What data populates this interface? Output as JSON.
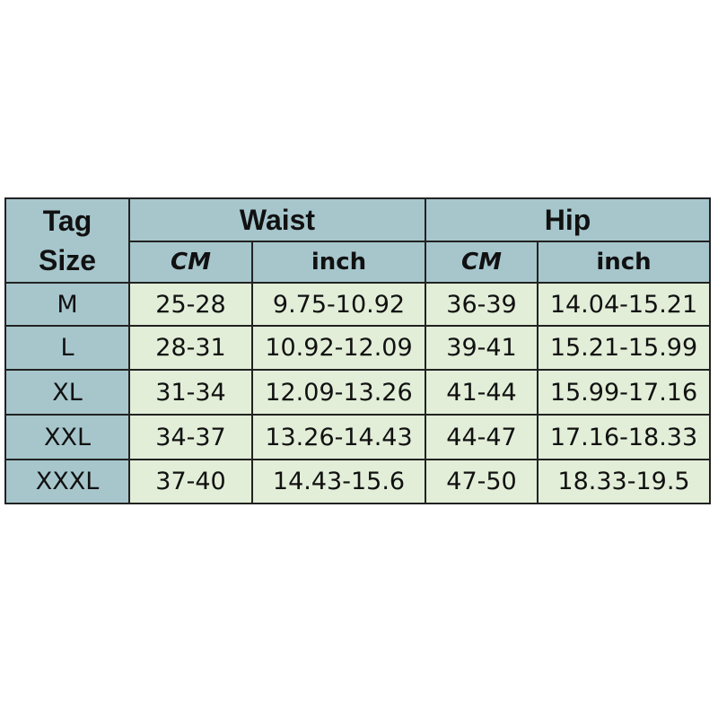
{
  "header": {
    "tag_size": [
      "Tag",
      "Size"
    ],
    "groups": [
      "Waist",
      "Hip"
    ],
    "units": [
      "CM",
      "inch",
      "CM",
      "inch"
    ]
  },
  "rows": [
    {
      "size": "M",
      "waist_cm": "25-28",
      "waist_inch": "9.75-10.92",
      "hip_cm": "36-39",
      "hip_inch": "14.04-15.21"
    },
    {
      "size": "L",
      "waist_cm": "28-31",
      "waist_inch": "10.92-12.09",
      "hip_cm": "39-41",
      "hip_inch": "15.21-15.99"
    },
    {
      "size": "XL",
      "waist_cm": "31-34",
      "waist_inch": "12.09-13.26",
      "hip_cm": "41-44",
      "hip_inch": "15.99-17.16"
    },
    {
      "size": "XXL",
      "waist_cm": "34-37",
      "waist_inch": "13.26-14.43",
      "hip_cm": "44-47",
      "hip_inch": "17.16-18.33"
    },
    {
      "size": "XXXL",
      "waist_cm": "37-40",
      "waist_inch": "14.43-15.6",
      "hip_cm": "47-50",
      "hip_inch": "18.33-19.5"
    }
  ],
  "colors": {
    "header_bg": "#a6c6cc",
    "cell_bg": "#e2eed8",
    "border": "#222222"
  }
}
